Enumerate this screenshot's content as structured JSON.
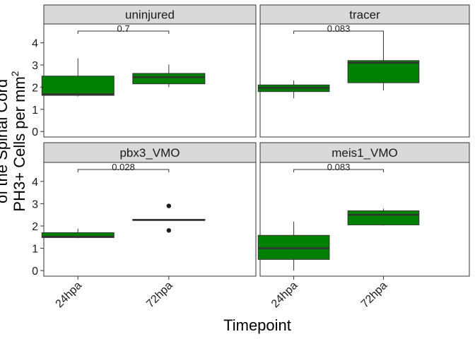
{
  "chart_data": {
    "type": "box",
    "facets": [
      "uninjured",
      "tracer",
      "pbx3_VMO",
      "meis1_VMO"
    ],
    "categories": [
      "24hpa",
      "72hpa"
    ],
    "xlabel": "Timepoint",
    "ylabel_line1": "PH3+ Cells per mm",
    "ylabel_sup": "2",
    "ylabel_line2": "of the Spinal Cord",
    "yticks": [
      0,
      1,
      2,
      3,
      4
    ],
    "ylim": [
      -0.25,
      4.85
    ],
    "box_color": "#008000",
    "panels": [
      {
        "facet": "uninjured",
        "pvalue": "0.7",
        "boxes": [
          {
            "x": "24hpa",
            "whisker_low": 1.58,
            "q1": 1.63,
            "median": 1.68,
            "q3": 2.5,
            "whisker_high": 3.3,
            "outliers": []
          },
          {
            "x": "72hpa",
            "whisker_low": 2.0,
            "q1": 2.15,
            "median": 2.45,
            "q3": 2.62,
            "whisker_high": 3.02,
            "outliers": []
          }
        ]
      },
      {
        "facet": "tracer",
        "pvalue": "0.083",
        "boxes": [
          {
            "x": "24hpa",
            "whisker_low": 1.5,
            "q1": 1.8,
            "median": 1.97,
            "q3": 2.1,
            "whisker_high": 2.3,
            "outliers": []
          },
          {
            "x": "72hpa",
            "whisker_low": 1.85,
            "q1": 2.2,
            "median": 3.1,
            "q3": 3.2,
            "whisker_high": 4.4,
            "outliers": []
          }
        ]
      },
      {
        "facet": "pbx3_VMO",
        "pvalue": "0.028",
        "boxes": [
          {
            "x": "24hpa",
            "whisker_low": 1.45,
            "q1": 1.48,
            "median": 1.52,
            "q3": 1.7,
            "whisker_high": 1.88,
            "outliers": []
          },
          {
            "x": "72hpa",
            "whisker_low": 2.25,
            "q1": 2.25,
            "median": 2.27,
            "q3": 2.3,
            "whisker_high": 2.3,
            "outliers": [
              2.9,
              1.8
            ]
          }
        ]
      },
      {
        "facet": "meis1_VMO",
        "pvalue": "0.083",
        "boxes": [
          {
            "x": "24hpa",
            "whisker_low": 0.0,
            "q1": 0.5,
            "median": 1.0,
            "q3": 1.58,
            "whisker_high": 2.2,
            "outliers": []
          },
          {
            "x": "72hpa",
            "whisker_low": 2.02,
            "q1": 2.05,
            "median": 2.5,
            "q3": 2.68,
            "whisker_high": 2.78,
            "outliers": []
          }
        ]
      }
    ]
  }
}
